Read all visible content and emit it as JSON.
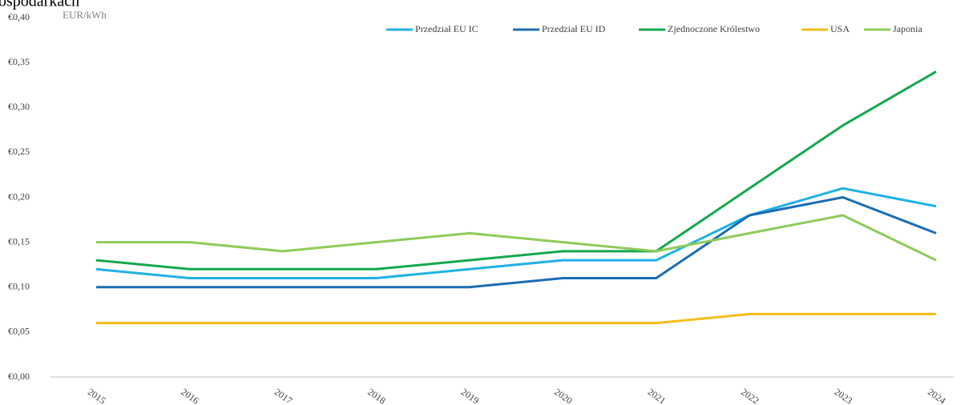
{
  "chart_data": {
    "type": "line",
    "title": "ospodarkach",
    "y_label": "EUR/kWh",
    "categories": [
      "2015",
      "2016",
      "2017",
      "2018",
      "2019",
      "2020",
      "2021",
      "2022",
      "2023",
      "2024"
    ],
    "series": [
      {
        "name": "Przedział EU IC",
        "color": "#1fb1e6",
        "values": [
          0.12,
          0.11,
          0.11,
          0.11,
          0.12,
          0.13,
          0.13,
          0.18,
          0.21,
          0.19
        ]
      },
      {
        "name": "Przedział EU ID",
        "color": "#1b6db3",
        "values": [
          0.1,
          0.1,
          0.1,
          0.1,
          0.1,
          0.11,
          0.11,
          0.18,
          0.2,
          0.16
        ]
      },
      {
        "name": "Zjednoczone Królestwo",
        "color": "#14a84e",
        "values": [
          0.13,
          0.12,
          0.12,
          0.12,
          0.13,
          0.14,
          0.14,
          0.21,
          0.28,
          0.34
        ]
      },
      {
        "name": "USA",
        "color": "#f5be17",
        "values": [
          0.06,
          0.06,
          0.06,
          0.06,
          0.06,
          0.06,
          0.06,
          0.07,
          0.07,
          0.07
        ]
      },
      {
        "name": "Japonia",
        "color": "#8ecb5a",
        "values": [
          0.15,
          0.15,
          0.14,
          0.15,
          0.16,
          0.15,
          0.14,
          0.16,
          0.18,
          0.13
        ]
      }
    ],
    "ylim": [
      0,
      0.4
    ],
    "yticks": [
      {
        "value": 0,
        "label": "€0,00"
      },
      {
        "value": 0.05,
        "label": "€0,05"
      },
      {
        "value": 0.1,
        "label": "€0,10"
      },
      {
        "value": 0.15,
        "label": "€0,15"
      },
      {
        "value": 0.2,
        "label": "€0,20"
      },
      {
        "value": 0.25,
        "label": "€0,25"
      },
      {
        "value": 0.3,
        "label": "€0,30"
      },
      {
        "value": 0.35,
        "label": "€0,35"
      },
      {
        "value": 0.4,
        "label": "€0,40"
      }
    ],
    "grid": false,
    "legend": "top-right"
  }
}
